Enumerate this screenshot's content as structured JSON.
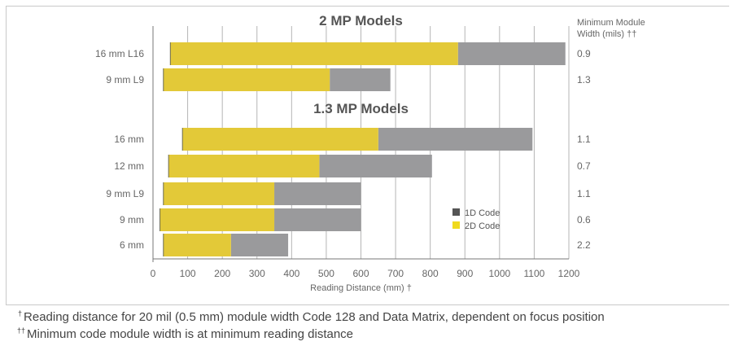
{
  "chart_data": {
    "type": "bar",
    "orientation": "horizontal",
    "stacked": "overlapped",
    "xlabel": "Reading Distance (mm) †",
    "xlim": [
      0,
      1200
    ],
    "xticks": [
      0,
      100,
      200,
      300,
      400,
      500,
      600,
      700,
      800,
      900,
      1000,
      1100,
      1200
    ],
    "right_axis_title": [
      "Minimum Module",
      "Width (mils) ††"
    ],
    "grid": "vertical",
    "legend": {
      "position": "center-right",
      "entries": [
        {
          "name": "1D Code",
          "color": "#888888"
        },
        {
          "name": "2D Code",
          "color": "#f0da1e"
        }
      ]
    },
    "colors": {
      "code_1d": "#9a9a9c",
      "code_2d": "#e3c938",
      "grid": "#b5b5b5",
      "marker_1d": "#555555",
      "marker_2d": "#f0da1e"
    },
    "groups": [
      {
        "title": "2 MP Models",
        "rows": [
          {
            "label": "16 mm L16",
            "min": 50,
            "max_2d": 880,
            "max_1d": 1190,
            "min_module": "0.9"
          },
          {
            "label": "9 mm L9",
            "min": 30,
            "max_2d": 510,
            "max_1d": 685,
            "min_module": "1.3"
          }
        ]
      },
      {
        "title": "1.3 MP Models",
        "rows": [
          {
            "label": "16 mm",
            "min": 85,
            "max_2d": 650,
            "max_1d": 1095,
            "min_module": "1.1"
          },
          {
            "label": "12 mm",
            "min": 45,
            "max_2d": 480,
            "max_1d": 805,
            "min_module": "0.7"
          },
          {
            "label": "9 mm L9",
            "min": 30,
            "max_2d": 350,
            "max_1d": 600,
            "min_module": "1.1"
          },
          {
            "label": "9 mm",
            "min": 20,
            "max_2d": 350,
            "max_1d": 600,
            "min_module": "0.6"
          },
          {
            "label": "6 mm",
            "min": 30,
            "max_2d": 225,
            "max_1d": 390,
            "min_module": "2.2"
          }
        ]
      }
    ]
  },
  "footnotes": {
    "fn1_marker": "†",
    "fn1_text": "Reading distance for 20 mil (0.5 mm) module width Code 128 and Data Matrix, dependent on focus position",
    "fn2_marker": "††",
    "fn2_text": "Minimum code module width is at minimum reading distance"
  }
}
